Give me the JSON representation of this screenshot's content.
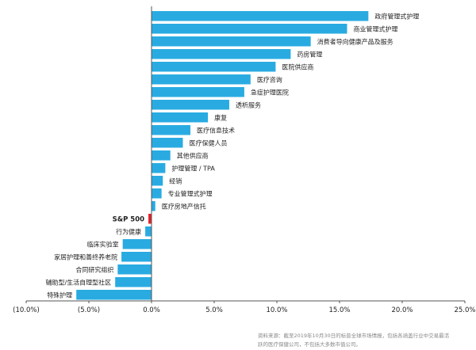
{
  "chart_data": {
    "type": "bar",
    "orientation": "horizontal",
    "xlim": [
      -10,
      25
    ],
    "xticks": [
      -10,
      -5,
      0,
      5,
      10,
      15,
      20,
      25
    ],
    "xtick_labels": [
      "(10.0%)",
      "(5.0%)",
      "0.0%",
      "5.0%",
      "10.0%",
      "15.0%",
      "20.0%",
      "25.0%"
    ],
    "colors": {
      "default": "#29ABE2",
      "highlight": "#E32227",
      "axis": "#555555"
    },
    "categories": [
      "政府管理式护理",
      "商业管理式护理",
      "消费者导向健康产品及服务",
      "药房管理",
      "医院供应商",
      "医疗咨询",
      "急症护理医院",
      "透析服务",
      "康复",
      "医疗信息技术",
      "医疗保健人员",
      "其他供应商",
      "护理管理 / TPA",
      "经销",
      "专业管理式护理",
      "医疗房地产信托",
      "S&P 500",
      "行为健康",
      "临床实验室",
      "家居护理和善终养老院",
      "合同研究组织",
      "辅助型/生活自理型社区",
      "特殊护理"
    ],
    "values": [
      17.3,
      15.6,
      12.7,
      11.1,
      9.9,
      7.9,
      7.4,
      6.2,
      4.5,
      3.1,
      2.5,
      1.5,
      1.1,
      0.9,
      0.8,
      0.3,
      -0.25,
      -0.5,
      -2.3,
      -2.4,
      -2.7,
      -2.9,
      -6.0
    ],
    "highlight_category": "S&P 500",
    "source_note": [
      "资料来源：截至2019年10月30日的标普全球市场情报，包括各涵盖行业中交易最活",
      "跃的医疗保健公司，不包括大多数市值公司。"
    ]
  }
}
